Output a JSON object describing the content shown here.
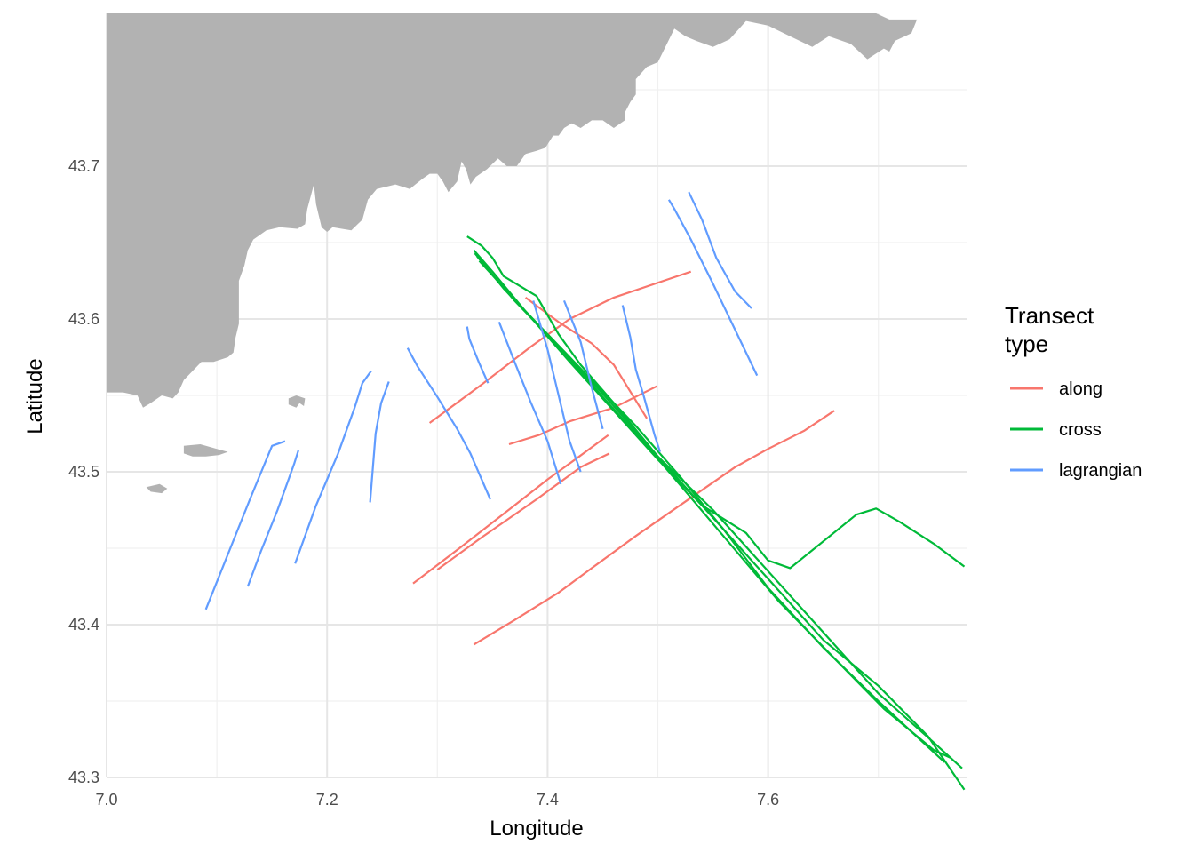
{
  "chart_data": {
    "type": "line",
    "xlabel": "Longitude",
    "ylabel": "Latitude",
    "xlim": [
      7.0,
      7.78
    ],
    "ylim": [
      43.3,
      43.8
    ],
    "x_ticks": [
      7.0,
      7.2,
      7.4,
      7.6
    ],
    "x_tick_labels": [
      "7.0",
      "7.2",
      "7.4",
      "7.6"
    ],
    "y_ticks": [
      43.3,
      43.4,
      43.5,
      43.6,
      43.7
    ],
    "y_tick_labels": [
      "43.3",
      "43.4",
      "43.5",
      "43.6",
      "43.7"
    ],
    "grid": true,
    "land_color": "#b2b2b2",
    "legend": {
      "title_lines": [
        "Transect",
        "type"
      ],
      "position": "right",
      "entries": [
        {
          "label": "along",
          "color": "#F8766D"
        },
        {
          "label": "cross",
          "color": "#00BA38"
        },
        {
          "label": "lagrangian",
          "color": "#619CFF"
        }
      ]
    },
    "land": [
      [
        [
          7.0,
          43.8
        ],
        [
          7.698,
          43.8
        ],
        [
          7.71,
          43.796
        ],
        [
          7.735,
          43.796
        ],
        [
          7.73,
          43.787
        ],
        [
          7.715,
          43.782
        ],
        [
          7.71,
          43.775
        ],
        [
          7.705,
          43.777
        ],
        [
          7.69,
          43.77
        ],
        [
          7.675,
          43.78
        ],
        [
          7.655,
          43.785
        ],
        [
          7.64,
          43.778
        ],
        [
          7.6,
          43.792
        ],
        [
          7.58,
          43.795
        ],
        [
          7.565,
          43.783
        ],
        [
          7.55,
          43.778
        ],
        [
          7.535,
          43.782
        ],
        [
          7.525,
          43.785
        ],
        [
          7.515,
          43.79
        ],
        [
          7.5,
          43.768
        ],
        [
          7.49,
          43.765
        ],
        [
          7.48,
          43.757
        ],
        [
          7.48,
          43.747
        ],
        [
          7.475,
          43.742
        ],
        [
          7.47,
          43.735
        ],
        [
          7.47,
          43.73
        ],
        [
          7.46,
          43.725
        ],
        [
          7.45,
          43.73
        ],
        [
          7.44,
          43.73
        ],
        [
          7.43,
          43.725
        ],
        [
          7.422,
          43.728
        ],
        [
          7.415,
          43.725
        ],
        [
          7.41,
          43.72
        ],
        [
          7.405,
          43.72
        ],
        [
          7.398,
          43.712
        ],
        [
          7.39,
          43.71
        ],
        [
          7.38,
          43.708
        ],
        [
          7.372,
          43.7
        ],
        [
          7.363,
          43.7
        ],
        [
          7.355,
          43.705
        ],
        [
          7.345,
          43.698
        ],
        [
          7.335,
          43.693
        ],
        [
          7.33,
          43.688
        ],
        [
          7.326,
          43.698
        ],
        [
          7.322,
          43.703
        ],
        [
          7.318,
          43.69
        ],
        [
          7.31,
          43.683
        ],
        [
          7.305,
          43.69
        ],
        [
          7.3,
          43.695
        ],
        [
          7.293,
          43.695
        ],
        [
          7.287,
          43.692
        ],
        [
          7.28,
          43.688
        ],
        [
          7.275,
          43.685
        ],
        [
          7.262,
          43.688
        ],
        [
          7.245,
          43.685
        ],
        [
          7.237,
          43.678
        ],
        [
          7.232,
          43.665
        ],
        [
          7.222,
          43.658
        ],
        [
          7.205,
          43.66
        ],
        [
          7.2,
          43.657
        ],
        [
          7.195,
          43.66
        ],
        [
          7.19,
          43.675
        ],
        [
          7.188,
          43.688
        ],
        [
          7.182,
          43.672
        ],
        [
          7.18,
          43.662
        ],
        [
          7.173,
          43.659
        ],
        [
          7.157,
          43.66
        ],
        [
          7.145,
          43.658
        ],
        [
          7.133,
          43.652
        ],
        [
          7.128,
          43.645
        ],
        [
          7.125,
          43.635
        ],
        [
          7.12,
          43.625
        ],
        [
          7.12,
          43.606
        ],
        [
          7.12,
          43.597
        ],
        [
          7.117,
          43.588
        ],
        [
          7.115,
          43.578
        ],
        [
          7.11,
          43.575
        ],
        [
          7.097,
          43.572
        ],
        [
          7.086,
          43.572
        ],
        [
          7.078,
          43.566
        ],
        [
          7.07,
          43.56
        ],
        [
          7.065,
          43.552
        ],
        [
          7.06,
          43.548
        ],
        [
          7.05,
          43.55
        ],
        [
          7.04,
          43.545
        ],
        [
          7.033,
          43.542
        ],
        [
          7.028,
          43.55
        ],
        [
          7.015,
          43.552
        ],
        [
          7.0,
          43.552
        ]
      ],
      [
        [
          7.165,
          43.544
        ],
        [
          7.172,
          43.542
        ],
        [
          7.175,
          43.545
        ],
        [
          7.179,
          43.543
        ],
        [
          7.18,
          43.548
        ],
        [
          7.172,
          43.55
        ],
        [
          7.165,
          43.548
        ]
      ],
      [
        [
          7.07,
          43.517
        ],
        [
          7.085,
          43.518
        ],
        [
          7.1,
          43.515
        ],
        [
          7.11,
          43.513
        ],
        [
          7.102,
          43.511
        ],
        [
          7.09,
          43.51
        ],
        [
          7.078,
          43.51
        ],
        [
          7.07,
          43.512
        ]
      ],
      [
        [
          7.036,
          43.49
        ],
        [
          7.048,
          43.492
        ],
        [
          7.055,
          43.489
        ],
        [
          7.05,
          43.486
        ],
        [
          7.04,
          43.487
        ]
      ]
    ],
    "series": [
      {
        "type": "along",
        "x": [
          7.293,
          7.34,
          7.385,
          7.42,
          7.46,
          7.53
        ],
        "y": [
          43.532,
          43.557,
          43.582,
          43.6,
          43.614,
          43.631
        ]
      },
      {
        "type": "along",
        "x": [
          7.365,
          7.392,
          7.42,
          7.46,
          7.499
        ],
        "y": [
          43.518,
          43.524,
          43.533,
          43.542,
          43.556
        ]
      },
      {
        "type": "along",
        "x": [
          7.278,
          7.32,
          7.37,
          7.4,
          7.425,
          7.455
        ],
        "y": [
          43.427,
          43.45,
          43.478,
          43.495,
          43.508,
          43.524
        ]
      },
      {
        "type": "along",
        "x": [
          7.3,
          7.34,
          7.39,
          7.43,
          7.456
        ],
        "y": [
          43.436,
          43.457,
          43.482,
          43.503,
          43.512
        ]
      },
      {
        "type": "along",
        "x": [
          7.38,
          7.41,
          7.44,
          7.46,
          7.49
        ],
        "y": [
          43.614,
          43.598,
          43.584,
          43.57,
          43.535
        ]
      },
      {
        "type": "along",
        "x": [
          7.333,
          7.37,
          7.41,
          7.44,
          7.48,
          7.52,
          7.57,
          7.6,
          7.633,
          7.66
        ],
        "y": [
          43.387,
          43.403,
          43.421,
          43.437,
          43.458,
          43.478,
          43.503,
          43.515,
          43.527,
          43.54
        ]
      },
      {
        "type": "cross",
        "x": [
          7.327,
          7.34,
          7.35,
          7.36,
          7.39,
          7.41,
          7.43,
          7.46,
          7.5,
          7.55,
          7.6,
          7.65,
          7.7,
          7.75,
          7.776
        ],
        "y": [
          43.654,
          43.648,
          43.64,
          43.628,
          43.615,
          43.59,
          43.57,
          43.545,
          43.51,
          43.475,
          43.435,
          43.395,
          43.355,
          43.323,
          43.306
        ]
      },
      {
        "type": "cross",
        "x": [
          7.333,
          7.35,
          7.38,
          7.42,
          7.46,
          7.5,
          7.55,
          7.6,
          7.65,
          7.7,
          7.745,
          7.778
        ],
        "y": [
          43.645,
          43.631,
          43.605,
          43.575,
          43.543,
          43.51,
          43.47,
          43.43,
          43.39,
          43.36,
          43.327,
          43.292
        ]
      },
      {
        "type": "cross",
        "x": [
          7.334,
          7.36,
          7.4,
          7.44,
          7.48,
          7.52,
          7.56,
          7.6,
          7.65,
          7.7,
          7.76
        ],
        "y": [
          43.643,
          43.62,
          43.59,
          43.56,
          43.53,
          43.497,
          43.462,
          43.424,
          43.385,
          43.35,
          43.31
        ]
      },
      {
        "type": "cross",
        "x": [
          7.336,
          7.37,
          7.41,
          7.45,
          7.49,
          7.53,
          7.57,
          7.61,
          7.66,
          7.705,
          7.75,
          7.765
        ],
        "y": [
          43.641,
          43.612,
          43.582,
          43.549,
          43.517,
          43.483,
          43.449,
          43.415,
          43.378,
          43.345,
          43.318,
          43.313
        ]
      },
      {
        "type": "cross",
        "x": [
          7.338,
          7.38,
          7.42,
          7.46,
          7.5,
          7.54,
          7.58,
          7.6,
          7.608,
          7.62,
          7.68,
          7.698,
          7.72,
          7.75,
          7.778
        ],
        "y": [
          43.638,
          43.605,
          43.572,
          43.54,
          43.508,
          43.478,
          43.46,
          43.442,
          43.44,
          43.437,
          43.472,
          43.476,
          43.467,
          43.453,
          43.438
        ]
      },
      {
        "type": "lagrangian",
        "x": [
          7.09,
          7.11,
          7.13,
          7.15,
          7.162
        ],
        "y": [
          43.41,
          43.446,
          43.482,
          43.517,
          43.52
        ]
      },
      {
        "type": "lagrangian",
        "x": [
          7.128,
          7.14,
          7.155,
          7.17,
          7.174
        ],
        "y": [
          43.425,
          43.448,
          43.475,
          43.505,
          43.514
        ]
      },
      {
        "type": "lagrangian",
        "x": [
          7.171,
          7.19,
          7.21,
          7.225,
          7.232,
          7.24
        ],
        "y": [
          43.44,
          43.478,
          43.512,
          43.542,
          43.558,
          43.566
        ]
      },
      {
        "type": "lagrangian",
        "x": [
          7.239,
          7.244,
          7.249,
          7.256
        ],
        "y": [
          43.48,
          43.525,
          43.545,
          43.559
        ]
      },
      {
        "type": "lagrangian",
        "x": [
          7.273,
          7.282,
          7.3,
          7.318,
          7.33,
          7.348
        ],
        "y": [
          43.581,
          43.569,
          43.549,
          43.528,
          43.512,
          43.482
        ]
      },
      {
        "type": "lagrangian",
        "x": [
          7.327,
          7.329,
          7.338,
          7.346
        ],
        "y": [
          43.595,
          43.587,
          43.571,
          43.558
        ]
      },
      {
        "type": "lagrangian",
        "x": [
          7.356,
          7.37,
          7.385,
          7.4,
          7.412
        ],
        "y": [
          43.598,
          43.572,
          43.545,
          43.52,
          43.492
        ]
      },
      {
        "type": "lagrangian",
        "x": [
          7.387,
          7.4,
          7.41,
          7.42,
          7.43
        ],
        "y": [
          43.612,
          43.58,
          43.55,
          43.52,
          43.5
        ]
      },
      {
        "type": "lagrangian",
        "x": [
          7.415,
          7.43,
          7.44,
          7.45
        ],
        "y": [
          43.612,
          43.585,
          43.555,
          43.528
        ]
      },
      {
        "type": "lagrangian",
        "x": [
          7.468,
          7.475,
          7.48,
          7.487,
          7.497,
          7.502
        ],
        "y": [
          43.609,
          43.588,
          43.567,
          43.55,
          43.524,
          43.513
        ]
      },
      {
        "type": "lagrangian",
        "x": [
          7.51,
          7.515,
          7.53,
          7.55,
          7.57,
          7.59
        ],
        "y": [
          43.678,
          43.672,
          43.652,
          43.623,
          43.593,
          43.563
        ]
      },
      {
        "type": "lagrangian",
        "x": [
          7.528,
          7.54,
          7.553,
          7.57,
          7.585
        ],
        "y": [
          43.683,
          43.665,
          43.64,
          43.618,
          43.607
        ]
      }
    ]
  }
}
